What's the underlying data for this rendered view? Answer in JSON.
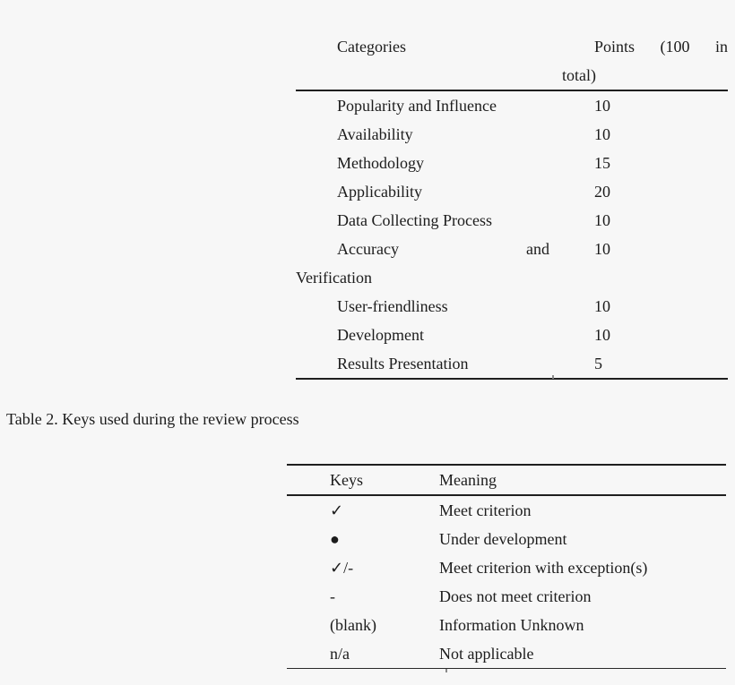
{
  "page": {
    "background_color": "#f7f7f7",
    "text_color": "#1c1c1c",
    "rule_color": "#1f1f1f"
  },
  "table1": {
    "header": {
      "col1": "Categories",
      "col2_line1": "Points (100 in",
      "col2_line2": "total)"
    },
    "rows": [
      {
        "label": "Popularity and Influence",
        "points": "10"
      },
      {
        "label": "Availability",
        "points": "10"
      },
      {
        "label": "Methodology",
        "points": "15"
      },
      {
        "label": "Applicability",
        "points": "20"
      },
      {
        "label": "Data Collecting Process",
        "points": "10"
      },
      {
        "label": "Accuracy and",
        "label_continued": "Verification",
        "points": "10"
      },
      {
        "label": "User-friendliness",
        "points": "10"
      },
      {
        "label": "Development",
        "points": "10"
      },
      {
        "label": "Results Presentation",
        "points": "5"
      }
    ]
  },
  "caption": {
    "text": "Table 2. Keys used during the review process"
  },
  "table2": {
    "header": {
      "col1": "Keys",
      "col2": "Meaning"
    },
    "rows": [
      {
        "key": "✓",
        "meaning": "Meet criterion"
      },
      {
        "key": "●",
        "meaning": "Under development"
      },
      {
        "key": "✓/-",
        "meaning": "Meet criterion with exception(s)"
      },
      {
        "key": "-",
        "meaning": "Does not meet criterion"
      },
      {
        "key": "(blank)",
        "meaning": "Information Unknown"
      },
      {
        "key": "n/a",
        "meaning": "Not applicable"
      }
    ]
  }
}
